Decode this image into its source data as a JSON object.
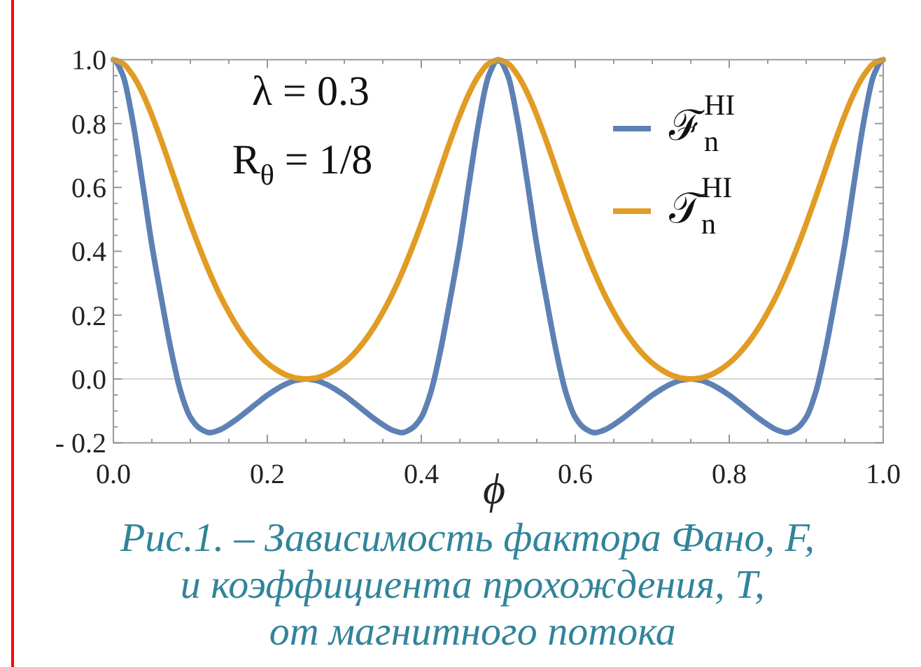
{
  "chart_data": {
    "type": "line",
    "xlabel": "ϕ",
    "legend": "top right",
    "x": [
      0,
      0.0125,
      0.025,
      0.0375,
      0.05,
      0.0625,
      0.075,
      0.0875,
      0.1,
      0.1125,
      0.125,
      0.1375,
      0.15,
      0.1625,
      0.175,
      0.1875,
      0.2,
      0.2125,
      0.225,
      0.2375,
      0.25,
      0.2625,
      0.275,
      0.2875,
      0.3,
      0.3125,
      0.325,
      0.3375,
      0.35,
      0.3625,
      0.375,
      0.3875,
      0.4,
      0.4125,
      0.425,
      0.4375,
      0.45,
      0.4625,
      0.475,
      0.4875,
      0.5,
      0.5125,
      0.525,
      0.5375,
      0.55,
      0.5625,
      0.575,
      0.5875,
      0.6,
      0.6125,
      0.625,
      0.6375,
      0.65,
      0.6625,
      0.675,
      0.6875,
      0.7,
      0.7125,
      0.725,
      0.7375,
      0.75,
      0.7625,
      0.775,
      0.7875,
      0.8,
      0.8125,
      0.825,
      0.8375,
      0.85,
      0.8625,
      0.875,
      0.8875,
      0.9,
      0.9125,
      0.925,
      0.9375,
      0.95,
      0.9625,
      0.975,
      0.9875,
      1.0
    ],
    "xlim": [
      0,
      1
    ],
    "ylim": [
      -0.2,
      1
    ],
    "xticks": [
      {
        "value": 0,
        "label": "0.0"
      },
      0.2,
      0.4,
      0.6,
      0.8,
      {
        "value": 1,
        "label": "1.0"
      }
    ],
    "yticks": [
      {
        "value": -0.2,
        "label": "- 0.2"
      },
      {
        "value": 0,
        "label": "0.0"
      },
      0.2,
      0.4,
      0.6,
      0.8,
      {
        "value": 1,
        "label": "1.0"
      }
    ],
    "ref_lines": [
      {
        "axis": "y",
        "value": 0,
        "color": "#d4d4d4"
      }
    ],
    "annotations": [
      "λ = 0.3",
      "R$_{θ}$ = 1/8",
      "Рис.1. – Зависимость фактора Фано, F,\nи коэффициента прохождения, T,\nот магнитного потока"
    ],
    "series": [
      {
        "name": "ℱ$_{n}$$^{HI}$",
        "color": "#5e81b5",
        "values": [
          1.0,
          0.95,
          0.81,
          0.62,
          0.42,
          0.25,
          0.09,
          -0.04,
          -0.12,
          -0.155,
          -0.168,
          -0.16,
          -0.143,
          -0.122,
          -0.098,
          -0.074,
          -0.051,
          -0.031,
          -0.015,
          -0.004,
          0.0,
          -0.004,
          -0.015,
          -0.031,
          -0.051,
          -0.074,
          -0.098,
          -0.122,
          -0.143,
          -0.16,
          -0.168,
          -0.155,
          -0.12,
          -0.04,
          0.09,
          0.25,
          0.42,
          0.62,
          0.81,
          0.95,
          1.0,
          0.95,
          0.81,
          0.62,
          0.42,
          0.25,
          0.09,
          -0.04,
          -0.12,
          -0.155,
          -0.168,
          -0.16,
          -0.143,
          -0.122,
          -0.098,
          -0.074,
          -0.051,
          -0.031,
          -0.015,
          -0.004,
          0.0,
          -0.004,
          -0.015,
          -0.031,
          -0.051,
          -0.074,
          -0.098,
          -0.122,
          -0.143,
          -0.16,
          -0.168,
          -0.155,
          -0.12,
          -0.04,
          0.09,
          0.25,
          0.42,
          0.62,
          0.81,
          0.95,
          1.0
        ]
      },
      {
        "name": "𝒯$_{n}$$^{HI}$",
        "color": "#e19c24",
        "values": [
          1.0,
          0.988,
          0.952,
          0.897,
          0.826,
          0.745,
          0.658,
          0.571,
          0.486,
          0.407,
          0.333,
          0.267,
          0.209,
          0.158,
          0.115,
          0.079,
          0.05,
          0.028,
          0.012,
          0.003,
          0.0,
          0.003,
          0.012,
          0.028,
          0.05,
          0.079,
          0.115,
          0.158,
          0.209,
          0.267,
          0.333,
          0.407,
          0.486,
          0.571,
          0.658,
          0.745,
          0.826,
          0.897,
          0.952,
          0.988,
          1.0,
          0.988,
          0.952,
          0.897,
          0.826,
          0.745,
          0.658,
          0.571,
          0.486,
          0.407,
          0.333,
          0.267,
          0.209,
          0.158,
          0.115,
          0.079,
          0.05,
          0.028,
          0.012,
          0.003,
          0.0,
          0.003,
          0.012,
          0.028,
          0.05,
          0.079,
          0.115,
          0.158,
          0.209,
          0.267,
          0.333,
          0.407,
          0.486,
          0.571,
          0.658,
          0.745,
          0.826,
          0.897,
          0.952,
          0.988,
          1.0
        ]
      }
    ]
  }
}
